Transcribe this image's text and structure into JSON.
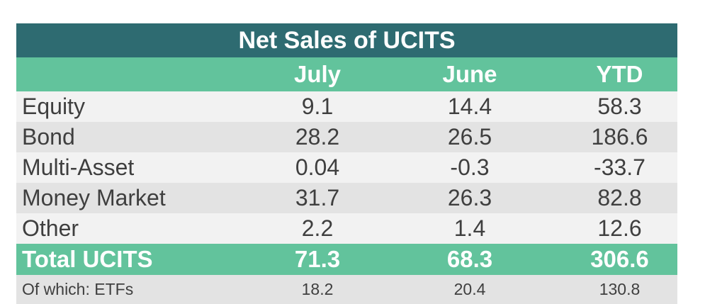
{
  "chart_data": {
    "type": "table",
    "title": "Net Sales of UCITS",
    "columns": [
      "",
      "July",
      "June",
      "YTD"
    ],
    "rows": [
      {
        "label": "Equity",
        "values": [
          "9.1",
          "14.4",
          "58.3"
        ]
      },
      {
        "label": "Bond",
        "values": [
          "28.2",
          "26.5",
          "186.6"
        ]
      },
      {
        "label": "Multi-Asset",
        "values": [
          "0.04",
          "-0.3",
          "-33.7"
        ]
      },
      {
        "label": "Money Market",
        "values": [
          "31.7",
          "26.3",
          "82.8"
        ]
      },
      {
        "label": "Other",
        "values": [
          "2.2",
          "1.4",
          "12.6"
        ]
      }
    ],
    "total": {
      "label": "Total UCITS",
      "values": [
        "71.3",
        "68.3",
        "306.6"
      ]
    },
    "sub": {
      "label": "Of which: ETFs",
      "values": [
        "18.2",
        "20.4",
        "130.8"
      ]
    }
  },
  "colors": {
    "title_bg": "#2e6b71",
    "header_bg": "#62c39c",
    "row_light": "#f2f2f2",
    "row_dark": "#e3e3e3",
    "text": "#3f3f3f"
  }
}
